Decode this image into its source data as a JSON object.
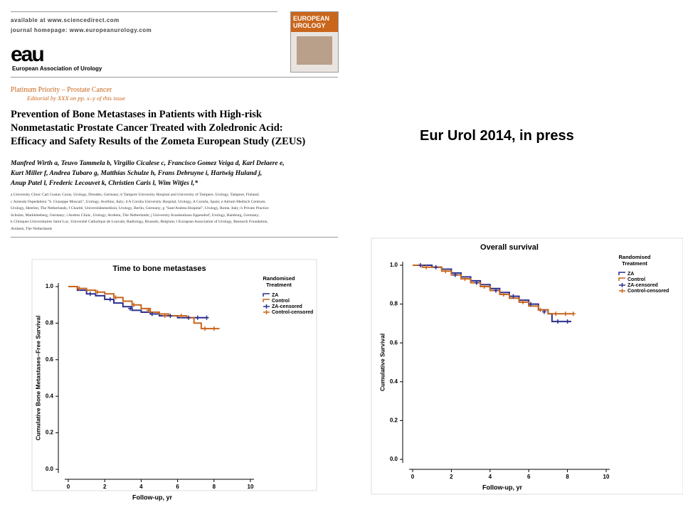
{
  "caption": "Eur Urol 2014, in press",
  "paper": {
    "site_line": "available at www.sciencedirect.com",
    "journal_line": "journal homepage: www.europeanurology.com",
    "logo": "eau",
    "society": "European Association of Urology",
    "journal_cover": [
      "EUROPEAN",
      "UROLOGY"
    ],
    "section": "Platinum Priority – Prostate Cancer",
    "editorial": "Editorial by XXX on pp. x–y of this issue",
    "title": [
      "Prevention of Bone Metastases in Patients with High-risk",
      "Nonmetastatic Prostate Cancer Treated with Zoledronic Acid:",
      "Efficacy and Safety Results of the Zometa European Study (ZEUS)"
    ],
    "authors": [
      "Manfred Wirth a, Teuvo Tammela b, Virgilio Cicalese c, Francisco Gomez Veiga d, Karl Delaere e,",
      "Kurt Miller f, Andrea Tubaro g, Matthias Schulze h, Frans Debruyne i, Hartwig Huland j,",
      "Anup Patel l, Frederic Lecouvet k, Christien Caris l, Wim Witjes l,*"
    ],
    "affiliations": [
      "a University Clinic Carl Gustav Carus, Urology, Dresden, Germany; b Tampere University Hospital and University of Tampere, Urology, Tampere, Finland;",
      "c Azienda Ospedaliera \"S. Giuseppe Moscati\", Urology, Avellino, Italy; d A Coruña University Hospital, Urology, A Coruña, Spain; e Atrium Medisch Centrum,",
      "Urology, Heerlen, The Netherlands; f Charité, Universitätsmedizin, Urology, Berlin, Germany; g \"Sant'Andrea Hospital\", Urology, Rome, Italy; h Private Practice",
      "Schulze, Markkleeberg, Germany; i Andros Clinic, Urology, Arnhem, The Netherlands; j University Krankenhaus Eppendorf, Urology, Hamburg, Germany;",
      "k Cliniques Universitaires Saint Luc, Université Catholique de Louvain, Radiology, Brussels, Belgium; l European Association of Urology, Research Foundation,",
      "Arnhem, The Netherlands"
    ]
  },
  "chart_data": [
    {
      "type": "line",
      "step": true,
      "title": "Time to bone metastases",
      "x_label": "Follow-up, yr",
      "y_label": "Cumulative Bone Metastases–Free Survival",
      "legend_title": [
        "Randomised",
        "Treatment"
      ],
      "xlim": [
        0,
        10
      ],
      "xticks": [
        0,
        2,
        4,
        6,
        8,
        10
      ],
      "ylim": [
        0,
        1
      ],
      "yticks": [
        {
          "value": 0,
          "label": "0.0"
        },
        0.2,
        0.4,
        0.6,
        0.8,
        {
          "value": 1,
          "label": "1.0"
        }
      ],
      "series": [
        {
          "name": "ZA",
          "color": "#2b2f8f",
          "style": "step",
          "x": [
            0,
            0.5,
            1,
            1.5,
            2,
            2.5,
            3,
            3.5,
            4,
            4.5,
            5,
            5.5,
            6,
            6.5,
            7,
            7.6
          ],
          "values": [
            1.0,
            0.98,
            0.96,
            0.95,
            0.93,
            0.91,
            0.89,
            0.87,
            0.86,
            0.85,
            0.84,
            0.84,
            0.83,
            0.83,
            0.83,
            0.83
          ]
        },
        {
          "name": "Control",
          "color": "#c8651b",
          "style": "step",
          "x": [
            0,
            0.5,
            1,
            1.5,
            2,
            2.5,
            3,
            3.5,
            4,
            4.5,
            5,
            5.5,
            6,
            6.5,
            6.9,
            7.3,
            8.3
          ],
          "values": [
            1.0,
            0.99,
            0.98,
            0.97,
            0.96,
            0.94,
            0.92,
            0.9,
            0.88,
            0.86,
            0.85,
            0.84,
            0.84,
            0.83,
            0.8,
            0.77,
            0.77
          ]
        },
        {
          "name": "ZA-censored",
          "color": "#2b2f8f",
          "style": "censor",
          "x": [
            1.2,
            2.3,
            3.4,
            4.6,
            5.6,
            6.6,
            7.1,
            7.6
          ],
          "values": [
            0.96,
            0.93,
            0.88,
            0.85,
            0.84,
            0.83,
            0.83,
            0.83
          ]
        },
        {
          "name": "Control-censored",
          "color": "#c8651b",
          "style": "censor",
          "x": [
            0.6,
            1.6,
            2.6,
            3.6,
            4.4,
            5.3,
            6.2,
            7.5,
            8.0
          ],
          "values": [
            0.99,
            0.97,
            0.94,
            0.9,
            0.87,
            0.84,
            0.84,
            0.77,
            0.77
          ]
        }
      ]
    },
    {
      "type": "line",
      "step": true,
      "title": "Overall survival",
      "x_label": "Follow-up, yr",
      "y_label": "Cumulative Survival",
      "legend_title": [
        "Randomised",
        "Treatment"
      ],
      "xlim": [
        0,
        10
      ],
      "xticks": [
        0,
        2,
        4,
        6,
        8,
        10
      ],
      "ylim": [
        0,
        1
      ],
      "yticks": [
        {
          "value": 0,
          "label": "0.0"
        },
        0.2,
        0.4,
        0.6,
        0.8,
        {
          "value": 1,
          "label": "1.0"
        }
      ],
      "series": [
        {
          "name": "ZA",
          "color": "#2b2f8f",
          "style": "step",
          "x": [
            0,
            0.5,
            1,
            1.5,
            2,
            2.5,
            3,
            3.5,
            4,
            4.5,
            5,
            5.5,
            6,
            6.5,
            7,
            7.2,
            8.2
          ],
          "values": [
            1.0,
            1.0,
            0.99,
            0.98,
            0.96,
            0.94,
            0.92,
            0.9,
            0.88,
            0.86,
            0.84,
            0.82,
            0.8,
            0.77,
            0.75,
            0.71,
            0.71
          ]
        },
        {
          "name": "Control",
          "color": "#c8651b",
          "style": "step",
          "x": [
            0,
            0.5,
            1,
            1.5,
            2,
            2.5,
            3,
            3.5,
            4,
            4.5,
            5,
            5.5,
            6,
            6.5,
            7,
            8.3
          ],
          "values": [
            1.0,
            0.99,
            0.99,
            0.97,
            0.95,
            0.93,
            0.91,
            0.89,
            0.87,
            0.85,
            0.83,
            0.81,
            0.79,
            0.77,
            0.75,
            0.75
          ]
        },
        {
          "name": "ZA-censored",
          "color": "#2b2f8f",
          "style": "censor",
          "x": [
            0.4,
            1.2,
            2.2,
            3.3,
            4.3,
            5.2,
            6.1,
            6.8,
            7.5,
            8.0
          ],
          "values": [
            1.0,
            0.99,
            0.95,
            0.91,
            0.87,
            0.84,
            0.8,
            0.76,
            0.71,
            0.71
          ]
        },
        {
          "name": "Control-censored",
          "color": "#c8651b",
          "style": "censor",
          "x": [
            0.7,
            1.7,
            2.7,
            3.7,
            4.7,
            5.7,
            6.6,
            7.4,
            7.9,
            8.3
          ],
          "values": [
            0.99,
            0.97,
            0.93,
            0.89,
            0.85,
            0.81,
            0.77,
            0.75,
            0.75,
            0.75
          ]
        }
      ]
    }
  ]
}
